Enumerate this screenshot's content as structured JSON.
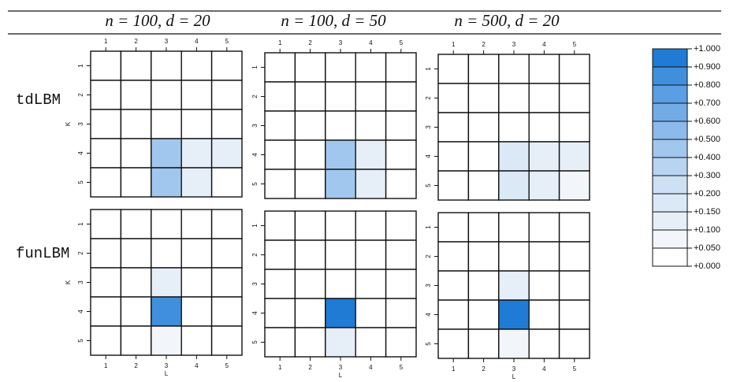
{
  "column_titles": [
    "n = 100, d = 20",
    "n = 100, d = 50",
    "n = 500, d = 20"
  ],
  "row_titles": [
    "tdLBM",
    "funLBM"
  ],
  "chart_data": [
    {
      "type": "heatmap",
      "x": [
        "1",
        "2",
        "3",
        "4",
        "5"
      ],
      "y": [
        "1",
        "2",
        "3",
        "4",
        "5"
      ],
      "ylabel": "K",
      "xaxis_position": "top",
      "values": [
        [
          0,
          0,
          0,
          0,
          0
        ],
        [
          0,
          0,
          0,
          0,
          0
        ],
        [
          0,
          0,
          0,
          0,
          0
        ],
        [
          0,
          0,
          0.45,
          0.12,
          0.1
        ],
        [
          0,
          0,
          0.4,
          0.1,
          0
        ]
      ]
    },
    {
      "type": "heatmap",
      "x": [
        "1",
        "2",
        "3",
        "4",
        "5"
      ],
      "y": [
        "1",
        "2",
        "3",
        "4",
        "5"
      ],
      "xaxis_position": "top",
      "values": [
        [
          0,
          0,
          0,
          0,
          0
        ],
        [
          0,
          0,
          0,
          0,
          0
        ],
        [
          0,
          0,
          0,
          0,
          0
        ],
        [
          0,
          0,
          0.45,
          0.12,
          0
        ],
        [
          0,
          0,
          0.4,
          0.12,
          0
        ]
      ]
    },
    {
      "type": "heatmap",
      "x": [
        "1",
        "2",
        "3",
        "4",
        "5"
      ],
      "y": [
        "1",
        "2",
        "3",
        "4",
        "5"
      ],
      "xaxis_position": "top",
      "values": [
        [
          0,
          0,
          0,
          0,
          0
        ],
        [
          0,
          0,
          0,
          0,
          0
        ],
        [
          0,
          0,
          0,
          0,
          0
        ],
        [
          0,
          0,
          0.15,
          0.12,
          0.1
        ],
        [
          0,
          0,
          0.15,
          0.1,
          0.05
        ]
      ]
    },
    {
      "type": "heatmap",
      "x": [
        "1",
        "2",
        "3",
        "4",
        "5"
      ],
      "y": [
        "1",
        "2",
        "3",
        "4",
        "5"
      ],
      "ylabel": "K",
      "xlabel": "L",
      "xaxis_position": "bottom",
      "values": [
        [
          0,
          0,
          0,
          0,
          0
        ],
        [
          0,
          0,
          0,
          0,
          0
        ],
        [
          0,
          0,
          0.12,
          0,
          0
        ],
        [
          0,
          0,
          0.85,
          0,
          0
        ],
        [
          0,
          0,
          0.08,
          0,
          0
        ]
      ]
    },
    {
      "type": "heatmap",
      "x": [
        "1",
        "2",
        "3",
        "4",
        "5"
      ],
      "y": [
        "1",
        "2",
        "3",
        "4",
        "5"
      ],
      "xlabel": "L",
      "xaxis_position": "bottom",
      "values": [
        [
          0,
          0,
          0,
          0,
          0
        ],
        [
          0,
          0,
          0,
          0,
          0
        ],
        [
          0,
          0,
          0,
          0,
          0
        ],
        [
          0,
          0,
          0.9,
          0,
          0
        ],
        [
          0,
          0,
          0.12,
          0,
          0
        ]
      ]
    },
    {
      "type": "heatmap",
      "x": [
        "1",
        "2",
        "3",
        "4",
        "5"
      ],
      "y": [
        "1",
        "2",
        "3",
        "4",
        "5"
      ],
      "xlabel": "L",
      "xaxis_position": "bottom",
      "values": [
        [
          0,
          0,
          0,
          0,
          0
        ],
        [
          0,
          0,
          0,
          0,
          0
        ],
        [
          0,
          0,
          0.1,
          0,
          0
        ],
        [
          0,
          0,
          0.9,
          0,
          0
        ],
        [
          0,
          0,
          0.08,
          0,
          0
        ]
      ]
    },
    {
      "type": "colorbar",
      "ticks": [
        {
          "value": 0,
          "label": "+0.000"
        },
        {
          "value": 0.05,
          "label": "+0.050"
        },
        {
          "value": 0.1,
          "label": "+0.100"
        },
        {
          "value": 0.15,
          "label": "+0.150"
        },
        {
          "value": 0.2,
          "label": "+0.200"
        },
        {
          "value": 0.3,
          "label": "+0.300"
        },
        {
          "value": 0.4,
          "label": "+0.400"
        },
        {
          "value": 0.5,
          "label": "+0.500"
        },
        {
          "value": 0.6,
          "label": "+0.600"
        },
        {
          "value": 0.7,
          "label": "+0.700"
        },
        {
          "value": 0.8,
          "label": "+0.800"
        },
        {
          "value": 0.9,
          "label": "+0.900"
        },
        {
          "value": 1,
          "label": "+1.000"
        }
      ],
      "colors": [
        "#ffffff",
        "#f2f6fb",
        "#e6eef8",
        "#dbe8f6",
        "#cde0f4",
        "#b8d4f1",
        "#a2c7ee",
        "#8bbaeb",
        "#72ace7",
        "#5a9ee3",
        "#3f8fdd",
        "#1f7bd3"
      ]
    }
  ]
}
